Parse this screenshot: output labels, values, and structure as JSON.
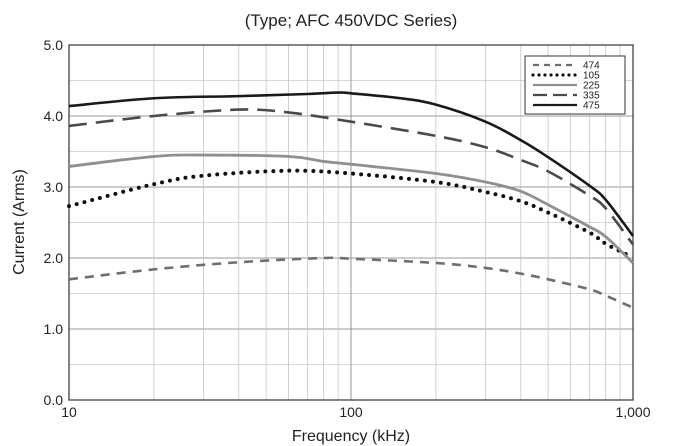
{
  "chart_data": {
    "type": "line",
    "title": "(Type; AFC 450VDC Series)",
    "xlabel": "Frequency (kHz)",
    "ylabel": "Current (Arms)",
    "x_scale": "log",
    "xlim": [
      10,
      1000
    ],
    "ylim": [
      0,
      5
    ],
    "x_ticks": [
      {
        "value": 10,
        "label": "10"
      },
      {
        "value": 100,
        "label": "100"
      },
      {
        "value": 1000,
        "label": "1,000"
      }
    ],
    "y_ticks": [
      {
        "value": 0,
        "label": "0.0"
      },
      {
        "value": 1,
        "label": "1.0"
      },
      {
        "value": 2,
        "label": "2.0"
      },
      {
        "value": 3,
        "label": "3.0"
      },
      {
        "value": 4,
        "label": "4.0"
      },
      {
        "value": 5,
        "label": "5.0"
      }
    ],
    "grid": true,
    "legend_position": "top-right",
    "series": [
      {
        "name": "474",
        "style": "dashed",
        "color": "#6e6e6e",
        "points": [
          [
            10,
            1.7
          ],
          [
            20,
            1.84
          ],
          [
            40,
            1.94
          ],
          [
            80,
            2.0
          ],
          [
            100,
            1.99
          ],
          [
            200,
            1.93
          ],
          [
            300,
            1.86
          ],
          [
            400,
            1.78
          ],
          [
            500,
            1.7
          ],
          [
            700,
            1.56
          ],
          [
            800,
            1.47
          ],
          [
            1000,
            1.3
          ]
        ]
      },
      {
        "name": "105",
        "style": "dotted",
        "color": "#111111",
        "points": [
          [
            10,
            2.73
          ],
          [
            20,
            3.04
          ],
          [
            30,
            3.16
          ],
          [
            60,
            3.23
          ],
          [
            100,
            3.19
          ],
          [
            200,
            3.07
          ],
          [
            300,
            2.93
          ],
          [
            400,
            2.8
          ],
          [
            500,
            2.64
          ],
          [
            700,
            2.36
          ],
          [
            800,
            2.2
          ],
          [
            950,
            2.05
          ]
        ]
      },
      {
        "name": "225",
        "style": "solid",
        "color": "#8f8f8f",
        "points": [
          [
            10,
            3.29
          ],
          [
            20,
            3.43
          ],
          [
            30,
            3.45
          ],
          [
            60,
            3.43
          ],
          [
            80,
            3.36
          ],
          [
            100,
            3.32
          ],
          [
            200,
            3.19
          ],
          [
            300,
            3.07
          ],
          [
            400,
            2.94
          ],
          [
            500,
            2.75
          ],
          [
            700,
            2.44
          ],
          [
            800,
            2.3
          ],
          [
            1000,
            1.93
          ]
        ]
      },
      {
        "name": "335",
        "style": "long-dash",
        "color": "#4a4a4a",
        "points": [
          [
            10,
            3.86
          ],
          [
            20,
            4.0
          ],
          [
            40,
            4.09
          ],
          [
            60,
            4.05
          ],
          [
            100,
            3.92
          ],
          [
            200,
            3.72
          ],
          [
            300,
            3.56
          ],
          [
            400,
            3.38
          ],
          [
            500,
            3.22
          ],
          [
            700,
            2.88
          ],
          [
            800,
            2.7
          ],
          [
            1000,
            2.19
          ]
        ]
      },
      {
        "name": "475",
        "style": "solid",
        "color": "#1a1a1a",
        "points": [
          [
            10,
            4.14
          ],
          [
            20,
            4.25
          ],
          [
            40,
            4.28
          ],
          [
            70,
            4.31
          ],
          [
            90,
            4.33
          ],
          [
            100,
            4.32
          ],
          [
            150,
            4.25
          ],
          [
            200,
            4.16
          ],
          [
            300,
            3.92
          ],
          [
            400,
            3.66
          ],
          [
            500,
            3.42
          ],
          [
            700,
            3.02
          ],
          [
            800,
            2.82
          ],
          [
            1000,
            2.31
          ]
        ]
      }
    ]
  }
}
